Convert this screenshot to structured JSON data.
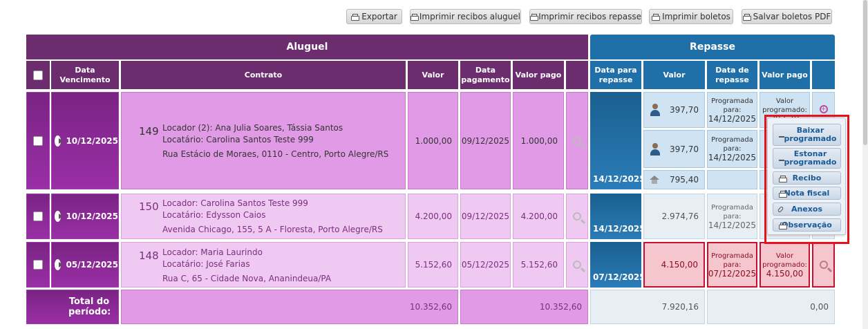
{
  "toolbar": {
    "buttons": [
      {
        "label": "Exportar",
        "icon": "printer-icon"
      },
      {
        "label": "Imprimir recibos aluguel",
        "icon": "printer-icon"
      },
      {
        "label": "Imprimir recibos repasse",
        "icon": "printer-icon"
      },
      {
        "label": "Imprimir boletos",
        "icon": "printer-icon"
      },
      {
        "label": "Salvar boletos PDF",
        "icon": "printer-icon"
      }
    ]
  },
  "groups": {
    "aluguel": "Aluguel",
    "repasse": "Repasse"
  },
  "columns": {
    "data_vencimento": "Data Vencimento",
    "contrato": "Contrato",
    "valor": "Valor",
    "data_pagamento": "Data pagamento",
    "valor_pago": "Valor pago",
    "data_para_repasse": "Data para repasse",
    "valor_repasse": "Valor",
    "data_de_repasse": "Data de repasse",
    "valor_pago_repasse": "Valor pago"
  },
  "rows": [
    {
      "vencimento": "10/12/2025",
      "contrato_num": "149",
      "locador": "Locador (2): Ana Julia Soares, Tássia Santos",
      "locatario": "Locatário: Carolina Santos Teste 999",
      "endereco": "Rua Estácio de Moraes, 0110 - Centro, Porto Alegre/RS",
      "valor": "1.000,00",
      "data_pagamento": "09/12/2025",
      "valor_pago": "1.000,00",
      "data_para_repasse": "14/12/2025",
      "repasses": [
        {
          "valor": "397,70",
          "status": "Programada para:",
          "data": "14/12/2025",
          "pago_label": "Valor programado:",
          "pago_valor": "397,70"
        },
        {
          "valor": "397,70",
          "status": "Programada para:",
          "data": "14/12/2025"
        },
        {
          "valor": "795,40"
        }
      ]
    },
    {
      "vencimento": "10/12/2025",
      "contrato_num": "150",
      "locador": "Locador: Carolina Santos Teste 999",
      "locatario": "Locatário: Edysson Caios",
      "endereco": "Avenida Chicago, 155, 5 A - Floresta, Porto Alegre/RS",
      "valor": "4.200,00",
      "data_pagamento": "09/12/2025",
      "valor_pago": "4.200,00",
      "data_para_repasse": "14/12/2025",
      "repasse_valor": "2.974,76",
      "repasse_status": "Programada para:",
      "repasse_data": "14/12/2025"
    },
    {
      "vencimento": "05/12/2025",
      "contrato_num": "148",
      "locador": "Locador: Maria Laurindo",
      "locatario": "Locatário: José Farias",
      "endereco": "Rua C, 65 - Cidade Nova, Ananindeua/PA",
      "valor": "5.152,60",
      "data_pagamento": "05/12/2025",
      "valor_pago": "5.152,60",
      "data_para_repasse": "07/12/2025",
      "repasse_valor": "4.150,00",
      "repasse_status": "Programada para:",
      "repasse_data": "07/12/2025",
      "pago_label": "Valor programado:",
      "pago_valor": "4.150,00"
    }
  ],
  "totals": {
    "label": "Total do período:",
    "valor": "10.352,60",
    "valor_pago": "10.352,60",
    "repasse_valor": "7.920,16",
    "repasse_pago": "0,00"
  },
  "popup": {
    "items": [
      {
        "label": "Baixar programado",
        "icon": "download-icon"
      },
      {
        "label": "Estonar programado",
        "icon": "download-icon"
      },
      {
        "label": "Recibo",
        "icon": "printer-icon"
      },
      {
        "label": "Nota fiscal",
        "icon": "printer-icon"
      },
      {
        "label": "Anexos",
        "icon": "paperclip-icon"
      },
      {
        "label": "Observação",
        "icon": "printer-icon"
      }
    ]
  },
  "colors": {
    "aluguel_header": "#6b2d6e",
    "repasse_header": "#1f6fa8",
    "highlight": "#e8101a",
    "alert": "#c8102e"
  }
}
